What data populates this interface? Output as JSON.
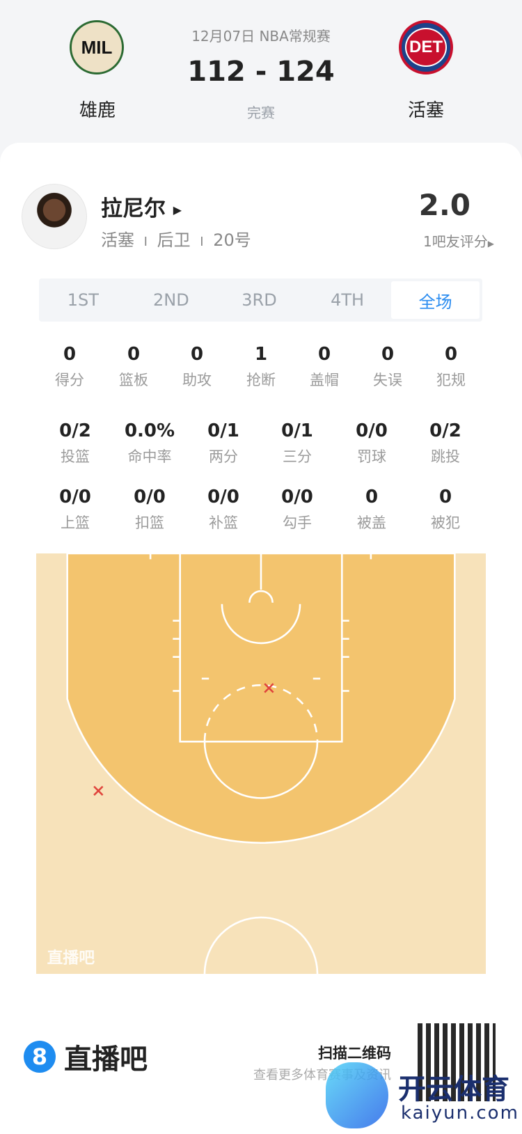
{
  "match": {
    "date_league": "12月07日 NBA常规赛",
    "score": "112 - 124",
    "status": "完赛",
    "home": {
      "abbr": "MIL",
      "name": "雄鹿",
      "color": "#2b6a32"
    },
    "away": {
      "abbr": "DET",
      "name": "活塞",
      "color": "#1d428a"
    }
  },
  "player": {
    "name": "拉尼尔",
    "team": "活塞",
    "position": "后卫",
    "number": "20号",
    "separator": "I",
    "rating": "2.0",
    "rating_label": "1吧友评分"
  },
  "tabs": [
    {
      "label": "1ST",
      "active": false
    },
    {
      "label": "2ND",
      "active": false
    },
    {
      "label": "3RD",
      "active": false
    },
    {
      "label": "4TH",
      "active": false
    },
    {
      "label": "全场",
      "active": true
    }
  ],
  "stats_row1": [
    {
      "value": "0",
      "label": "得分"
    },
    {
      "value": "0",
      "label": "篮板"
    },
    {
      "value": "0",
      "label": "助攻"
    },
    {
      "value": "1",
      "label": "抢断"
    },
    {
      "value": "0",
      "label": "盖帽"
    },
    {
      "value": "0",
      "label": "失误"
    },
    {
      "value": "0",
      "label": "犯规"
    }
  ],
  "stats_row2": [
    {
      "value": "0/2",
      "label": "投篮"
    },
    {
      "value": "0.0%",
      "label": "命中率"
    },
    {
      "value": "0/1",
      "label": "两分"
    },
    {
      "value": "0/1",
      "label": "三分"
    },
    {
      "value": "0/0",
      "label": "罚球"
    },
    {
      "value": "0/2",
      "label": "跳投"
    }
  ],
  "stats_row3": [
    {
      "value": "0/0",
      "label": "上篮"
    },
    {
      "value": "0/0",
      "label": "扣篮"
    },
    {
      "value": "0/0",
      "label": "补篮"
    },
    {
      "value": "0/0",
      "label": "勾手"
    },
    {
      "value": "0",
      "label": "被盖"
    },
    {
      "value": "0",
      "label": "被犯"
    }
  ],
  "shot_chart": {
    "watermark": "直播吧",
    "shots": [
      {
        "result": "miss",
        "type": "two"
      },
      {
        "result": "miss",
        "type": "three"
      }
    ],
    "miss_color": "#e0443c"
  },
  "footer": {
    "brand": "直播吧",
    "brand_icon": "8",
    "scan_title": "扫描二维码",
    "scan_subtitle": "查看更多体育赛事及资讯",
    "overlay_brand": "开云体育",
    "overlay_url": "kaiyun.com"
  },
  "colors": {
    "accent": "#2a8cf0",
    "court_inner": "#f3c46e",
    "court_outer": "#f7e2ba"
  }
}
